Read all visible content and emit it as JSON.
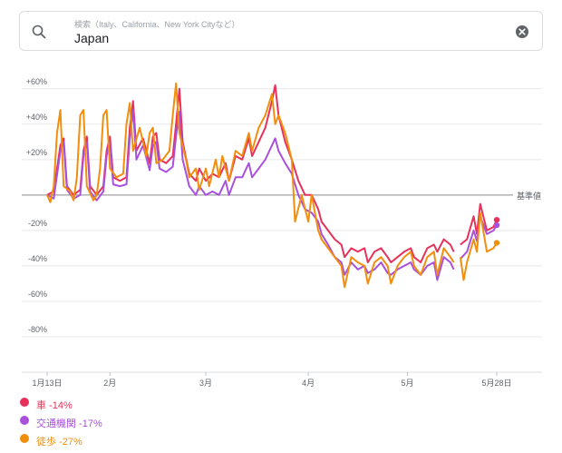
{
  "search": {
    "placeholder": "検索（Italy、California、New York Cityなど）",
    "value": "Japan"
  },
  "icons": {
    "search": "search-icon",
    "clear": "close-circle-icon"
  },
  "colors": {
    "car": "#e8315a",
    "transit": "#a950dd",
    "walking": "#f28e0d",
    "baseline": "#8a8a8a",
    "grid": "#e8e8e8"
  },
  "legend": [
    {
      "key": "car",
      "label": "車 -14%",
      "color": "#e8315a"
    },
    {
      "key": "transit",
      "label": "交通機関 -17%",
      "color": "#a950dd"
    },
    {
      "key": "walking",
      "label": "徒歩 -27%",
      "color": "#f28e0d"
    }
  ],
  "chart_data": {
    "type": "line",
    "title": "",
    "xlabel": "",
    "ylabel": "",
    "ylim": [
      -100,
      65
    ],
    "y_ticks": [
      60,
      40,
      20,
      -20,
      -40,
      -60,
      -80
    ],
    "y_tick_labels": [
      "+60%",
      "+40%",
      "+20%",
      "-20%",
      "-40%",
      "-60%",
      "-80%"
    ],
    "baseline_label": "基準値",
    "x_range": [
      "2020-01-13",
      "2020-05-28"
    ],
    "x_ticks": [
      {
        "date": "2020-01-13",
        "label": "1月13日"
      },
      {
        "date": "2020-02-01",
        "label": "2月"
      },
      {
        "date": "2020-03-01",
        "label": "3月"
      },
      {
        "date": "2020-04-01",
        "label": "4月"
      },
      {
        "date": "2020-05-01",
        "label": "5月"
      },
      {
        "date": "2020-05-28",
        "label": "5月28日"
      }
    ],
    "grid": true,
    "legend_position": "bottom-left",
    "series": [
      {
        "name": "車",
        "color": "#e8315a",
        "points": [
          [
            "2020-01-13",
            0
          ],
          [
            "2020-01-15",
            2
          ],
          [
            "2020-01-17",
            28
          ],
          [
            "2020-01-18",
            32
          ],
          [
            "2020-01-19",
            5
          ],
          [
            "2020-01-21",
            0
          ],
          [
            "2020-01-23",
            3
          ],
          [
            "2020-01-24",
            25
          ],
          [
            "2020-01-25",
            33
          ],
          [
            "2020-01-26",
            5
          ],
          [
            "2020-01-28",
            0
          ],
          [
            "2020-01-30",
            5
          ],
          [
            "2020-01-31",
            25
          ],
          [
            "2020-02-01",
            33
          ],
          [
            "2020-02-02",
            10
          ],
          [
            "2020-02-04",
            8
          ],
          [
            "2020-02-06",
            10
          ],
          [
            "2020-02-07",
            38
          ],
          [
            "2020-02-08",
            53
          ],
          [
            "2020-02-09",
            25
          ],
          [
            "2020-02-11",
            32
          ],
          [
            "2020-02-13",
            18
          ],
          [
            "2020-02-14",
            33
          ],
          [
            "2020-02-15",
            35
          ],
          [
            "2020-02-16",
            20
          ],
          [
            "2020-02-18",
            18
          ],
          [
            "2020-02-20",
            22
          ],
          [
            "2020-02-21",
            40
          ],
          [
            "2020-02-22",
            60
          ],
          [
            "2020-02-23",
            30
          ],
          [
            "2020-02-25",
            12
          ],
          [
            "2020-02-27",
            8
          ],
          [
            "2020-02-28",
            15
          ],
          [
            "2020-03-01",
            8
          ],
          [
            "2020-03-03",
            12
          ],
          [
            "2020-03-05",
            10
          ],
          [
            "2020-03-07",
            18
          ],
          [
            "2020-03-08",
            8
          ],
          [
            "2020-03-10",
            22
          ],
          [
            "2020-03-12",
            20
          ],
          [
            "2020-03-14",
            32
          ],
          [
            "2020-03-15",
            22
          ],
          [
            "2020-03-17",
            30
          ],
          [
            "2020-03-19",
            38
          ],
          [
            "2020-03-21",
            53
          ],
          [
            "2020-03-22",
            62
          ],
          [
            "2020-03-23",
            45
          ],
          [
            "2020-03-25",
            30
          ],
          [
            "2020-03-27",
            20
          ],
          [
            "2020-03-29",
            8
          ],
          [
            "2020-03-31",
            0
          ],
          [
            "2020-04-02",
            0
          ],
          [
            "2020-04-04",
            -8
          ],
          [
            "2020-04-05",
            -15
          ],
          [
            "2020-04-07",
            -20
          ],
          [
            "2020-04-09",
            -25
          ],
          [
            "2020-04-11",
            -28
          ],
          [
            "2020-04-12",
            -35
          ],
          [
            "2020-04-14",
            -30
          ],
          [
            "2020-04-16",
            -32
          ],
          [
            "2020-04-18",
            -30
          ],
          [
            "2020-04-19",
            -38
          ],
          [
            "2020-04-21",
            -32
          ],
          [
            "2020-04-23",
            -30
          ],
          [
            "2020-04-25",
            -35
          ],
          [
            "2020-04-26",
            -38
          ],
          [
            "2020-04-28",
            -35
          ],
          [
            "2020-04-30",
            -32
          ],
          [
            "2020-05-02",
            -30
          ],
          [
            "2020-05-03",
            -35
          ],
          [
            "2020-05-05",
            -38
          ],
          [
            "2020-05-07",
            -30
          ],
          [
            "2020-05-09",
            -28
          ],
          [
            "2020-05-10",
            -32
          ],
          [
            "2020-05-12",
            -25
          ],
          [
            "2020-05-14",
            -28
          ],
          [
            "2020-05-15",
            -32
          ],
          [
            "2020-05-17",
            -28
          ],
          [
            "2020-05-19",
            -25
          ],
          [
            "2020-05-21",
            -12
          ],
          [
            "2020-05-22",
            -22
          ],
          [
            "2020-05-23",
            -5
          ],
          [
            "2020-05-25",
            -20
          ],
          [
            "2020-05-27",
            -18
          ],
          [
            "2020-05-28",
            -14
          ]
        ],
        "gap": [
          "2020-05-15",
          "2020-05-17"
        ]
      },
      {
        "name": "交通機関",
        "color": "#a950dd",
        "points": [
          [
            "2020-01-13",
            0
          ],
          [
            "2020-01-15",
            -2
          ],
          [
            "2020-01-17",
            25
          ],
          [
            "2020-01-18",
            30
          ],
          [
            "2020-01-19",
            3
          ],
          [
            "2020-01-21",
            -2
          ],
          [
            "2020-01-23",
            0
          ],
          [
            "2020-01-24",
            22
          ],
          [
            "2020-01-25",
            30
          ],
          [
            "2020-01-26",
            2
          ],
          [
            "2020-01-28",
            -3
          ],
          [
            "2020-01-30",
            2
          ],
          [
            "2020-01-31",
            22
          ],
          [
            "2020-02-01",
            30
          ],
          [
            "2020-02-02",
            6
          ],
          [
            "2020-02-04",
            5
          ],
          [
            "2020-02-06",
            6
          ],
          [
            "2020-02-07",
            32
          ],
          [
            "2020-02-08",
            48
          ],
          [
            "2020-02-09",
            20
          ],
          [
            "2020-02-11",
            28
          ],
          [
            "2020-02-13",
            14
          ],
          [
            "2020-02-14",
            28
          ],
          [
            "2020-02-15",
            30
          ],
          [
            "2020-02-16",
            15
          ],
          [
            "2020-02-18",
            13
          ],
          [
            "2020-02-20",
            16
          ],
          [
            "2020-02-21",
            33
          ],
          [
            "2020-02-22",
            47
          ],
          [
            "2020-02-23",
            20
          ],
          [
            "2020-02-25",
            5
          ],
          [
            "2020-02-27",
            0
          ],
          [
            "2020-02-28",
            5
          ],
          [
            "2020-03-01",
            0
          ],
          [
            "2020-03-03",
            2
          ],
          [
            "2020-03-05",
            0
          ],
          [
            "2020-03-07",
            8
          ],
          [
            "2020-03-08",
            0
          ],
          [
            "2020-03-10",
            10
          ],
          [
            "2020-03-12",
            10
          ],
          [
            "2020-03-14",
            18
          ],
          [
            "2020-03-15",
            10
          ],
          [
            "2020-03-17",
            15
          ],
          [
            "2020-03-19",
            20
          ],
          [
            "2020-03-21",
            28
          ],
          [
            "2020-03-22",
            32
          ],
          [
            "2020-03-23",
            25
          ],
          [
            "2020-03-25",
            18
          ],
          [
            "2020-03-27",
            12
          ],
          [
            "2020-03-29",
            0
          ],
          [
            "2020-03-31",
            -8
          ],
          [
            "2020-04-02",
            -10
          ],
          [
            "2020-04-04",
            -15
          ],
          [
            "2020-04-05",
            -22
          ],
          [
            "2020-04-07",
            -28
          ],
          [
            "2020-04-09",
            -35
          ],
          [
            "2020-04-11",
            -38
          ],
          [
            "2020-04-12",
            -45
          ],
          [
            "2020-04-14",
            -38
          ],
          [
            "2020-04-16",
            -42
          ],
          [
            "2020-04-18",
            -40
          ],
          [
            "2020-04-19",
            -44
          ],
          [
            "2020-04-21",
            -42
          ],
          [
            "2020-04-23",
            -38
          ],
          [
            "2020-04-25",
            -44
          ],
          [
            "2020-04-26",
            -45
          ],
          [
            "2020-04-28",
            -42
          ],
          [
            "2020-04-30",
            -40
          ],
          [
            "2020-05-02",
            -38
          ],
          [
            "2020-05-03",
            -42
          ],
          [
            "2020-05-05",
            -45
          ],
          [
            "2020-05-07",
            -40
          ],
          [
            "2020-05-09",
            -38
          ],
          [
            "2020-05-10",
            -48
          ],
          [
            "2020-05-12",
            -35
          ],
          [
            "2020-05-14",
            -38
          ],
          [
            "2020-05-15",
            -42
          ],
          [
            "2020-05-17",
            -36
          ],
          [
            "2020-05-19",
            -32
          ],
          [
            "2020-05-21",
            -20
          ],
          [
            "2020-05-22",
            -26
          ],
          [
            "2020-05-23",
            -12
          ],
          [
            "2020-05-25",
            -22
          ],
          [
            "2020-05-27",
            -20
          ],
          [
            "2020-05-28",
            -17
          ]
        ],
        "gap": [
          "2020-05-15",
          "2020-05-17"
        ]
      },
      {
        "name": "徒歩",
        "color": "#f28e0d",
        "points": [
          [
            "2020-01-13",
            0
          ],
          [
            "2020-01-14",
            -4
          ],
          [
            "2020-01-15",
            5
          ],
          [
            "2020-01-16",
            35
          ],
          [
            "2020-01-17",
            48
          ],
          [
            "2020-01-18",
            5
          ],
          [
            "2020-01-20",
            2
          ],
          [
            "2020-01-21",
            -3
          ],
          [
            "2020-01-22",
            10
          ],
          [
            "2020-01-23",
            45
          ],
          [
            "2020-01-24",
            48
          ],
          [
            "2020-01-25",
            5
          ],
          [
            "2020-01-27",
            -3
          ],
          [
            "2020-01-28",
            0
          ],
          [
            "2020-01-29",
            15
          ],
          [
            "2020-01-30",
            45
          ],
          [
            "2020-01-31",
            48
          ],
          [
            "2020-02-01",
            15
          ],
          [
            "2020-02-03",
            10
          ],
          [
            "2020-02-05",
            12
          ],
          [
            "2020-02-06",
            40
          ],
          [
            "2020-02-07",
            52
          ],
          [
            "2020-02-08",
            25
          ],
          [
            "2020-02-10",
            38
          ],
          [
            "2020-02-12",
            22
          ],
          [
            "2020-02-13",
            35
          ],
          [
            "2020-02-14",
            38
          ],
          [
            "2020-02-15",
            18
          ],
          [
            "2020-02-17",
            20
          ],
          [
            "2020-02-19",
            25
          ],
          [
            "2020-02-20",
            45
          ],
          [
            "2020-02-21",
            63
          ],
          [
            "2020-02-22",
            35
          ],
          [
            "2020-02-24",
            20
          ],
          [
            "2020-02-25",
            10
          ],
          [
            "2020-02-27",
            15
          ],
          [
            "2020-02-28",
            3
          ],
          [
            "2020-03-01",
            15
          ],
          [
            "2020-03-02",
            5
          ],
          [
            "2020-03-04",
            20
          ],
          [
            "2020-03-05",
            10
          ],
          [
            "2020-03-06",
            22
          ],
          [
            "2020-03-08",
            8
          ],
          [
            "2020-03-10",
            25
          ],
          [
            "2020-03-12",
            22
          ],
          [
            "2020-03-14",
            35
          ],
          [
            "2020-03-15",
            25
          ],
          [
            "2020-03-17",
            38
          ],
          [
            "2020-03-19",
            45
          ],
          [
            "2020-03-21",
            57
          ],
          [
            "2020-03-22",
            40
          ],
          [
            "2020-03-23",
            45
          ],
          [
            "2020-03-25",
            35
          ],
          [
            "2020-03-27",
            20
          ],
          [
            "2020-03-28",
            -15
          ],
          [
            "2020-03-30",
            0
          ],
          [
            "2020-04-01",
            -15
          ],
          [
            "2020-04-02",
            0
          ],
          [
            "2020-04-04",
            -20
          ],
          [
            "2020-04-05",
            -25
          ],
          [
            "2020-04-07",
            -30
          ],
          [
            "2020-04-09",
            -35
          ],
          [
            "2020-04-11",
            -40
          ],
          [
            "2020-04-12",
            -52
          ],
          [
            "2020-04-14",
            -35
          ],
          [
            "2020-04-16",
            -38
          ],
          [
            "2020-04-18",
            -40
          ],
          [
            "2020-04-19",
            -50
          ],
          [
            "2020-04-21",
            -38
          ],
          [
            "2020-04-23",
            -35
          ],
          [
            "2020-04-25",
            -40
          ],
          [
            "2020-04-26",
            -50
          ],
          [
            "2020-04-28",
            -40
          ],
          [
            "2020-04-30",
            -35
          ],
          [
            "2020-05-02",
            -32
          ],
          [
            "2020-05-03",
            -40
          ],
          [
            "2020-05-05",
            -45
          ],
          [
            "2020-05-07",
            -35
          ],
          [
            "2020-05-09",
            -32
          ],
          [
            "2020-05-10",
            -45
          ],
          [
            "2020-05-12",
            -30
          ],
          [
            "2020-05-14",
            -35
          ],
          [
            "2020-05-15",
            -38
          ],
          [
            "2020-05-17",
            -35
          ],
          [
            "2020-05-18",
            -48
          ],
          [
            "2020-05-19",
            -38
          ],
          [
            "2020-05-21",
            -25
          ],
          [
            "2020-05-22",
            -32
          ],
          [
            "2020-05-23",
            -10
          ],
          [
            "2020-05-25",
            -32
          ],
          [
            "2020-05-27",
            -30
          ],
          [
            "2020-05-28",
            -27
          ]
        ],
        "gap": [
          "2020-05-15",
          "2020-05-17"
        ]
      }
    ]
  }
}
